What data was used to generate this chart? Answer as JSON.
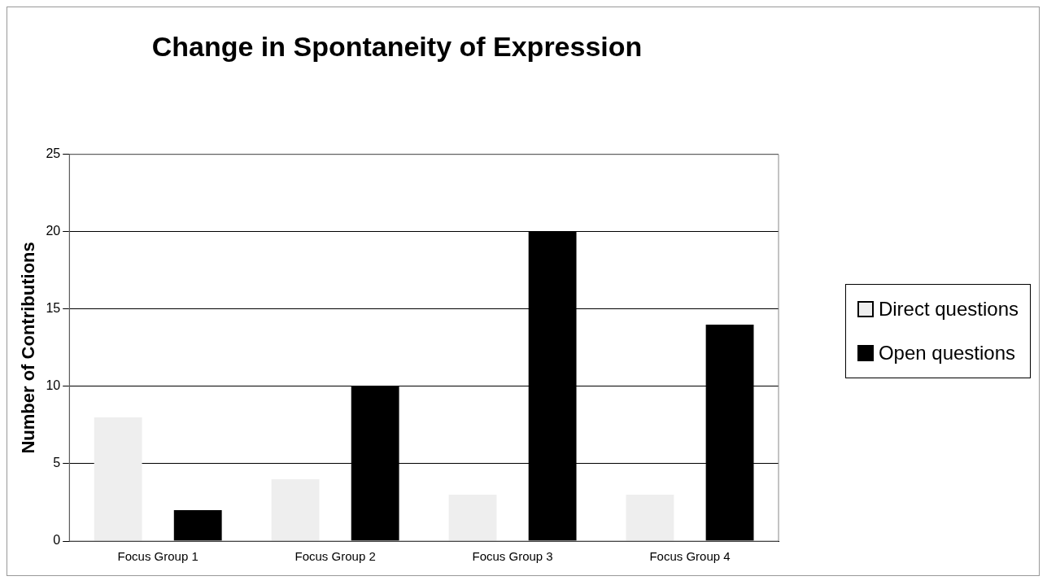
{
  "chart_data": {
    "type": "bar",
    "title": "Change in Spontaneity of Expression",
    "ylabel": "Number of Contributions",
    "categories": [
      "Focus Group 1",
      "Focus Group 2",
      "Focus Group 3",
      "Focus Group 4"
    ],
    "series": [
      {
        "name": "Direct questions",
        "color": "#eeeeee",
        "values": [
          8,
          4,
          3,
          3
        ]
      },
      {
        "name": "Open questions",
        "color": "#000000",
        "values": [
          2,
          10,
          20,
          14
        ]
      }
    ],
    "ylim": [
      0,
      25
    ],
    "yticks": [
      0,
      5,
      10,
      15,
      20,
      25
    ],
    "grid": "y",
    "legend": "right"
  }
}
